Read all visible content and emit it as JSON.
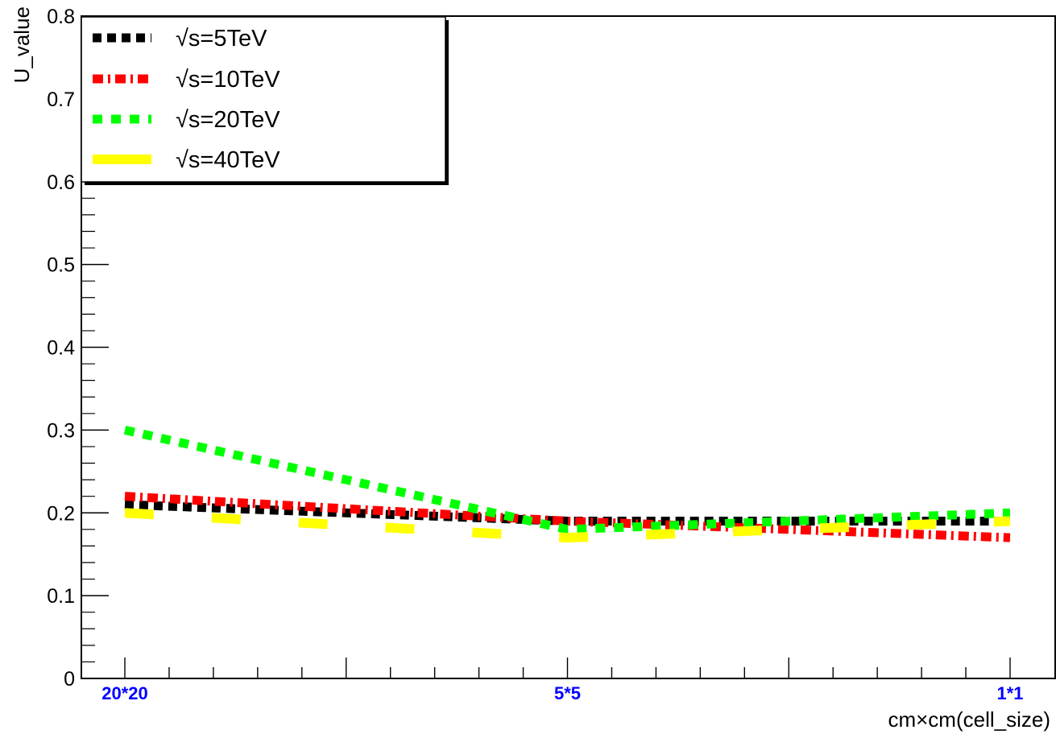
{
  "chart_data": {
    "type": "line",
    "title": "",
    "xlabel": "cm×cm(cell_size)",
    "ylabel": "U_value",
    "categories": [
      "20*20",
      "5*5",
      "1*1"
    ],
    "category_label_color": "#0000ff",
    "ylim": [
      0,
      0.8
    ],
    "yticks": [
      "0",
      "0.1",
      "0.2",
      "0.3",
      "0.4",
      "0.5",
      "0.6",
      "0.7",
      "0.8"
    ],
    "grid": false,
    "legend_position": "top-left",
    "series": [
      {
        "name": "√s=5TeV",
        "color": "#000000",
        "dash": "dotted",
        "values": [
          0.21,
          0.19,
          0.19
        ]
      },
      {
        "name": "√s=10TeV",
        "color": "#ff0000",
        "dash": "dash-dot",
        "values": [
          0.22,
          0.19,
          0.17
        ]
      },
      {
        "name": "√s=20TeV",
        "color": "#00ff00",
        "dash": "dashed",
        "values": [
          0.3,
          0.18,
          0.2
        ]
      },
      {
        "name": "√s=40TeV",
        "color": "#ffff00",
        "dash": "long-dash",
        "values": [
          0.2,
          0.17,
          0.19
        ]
      }
    ]
  }
}
